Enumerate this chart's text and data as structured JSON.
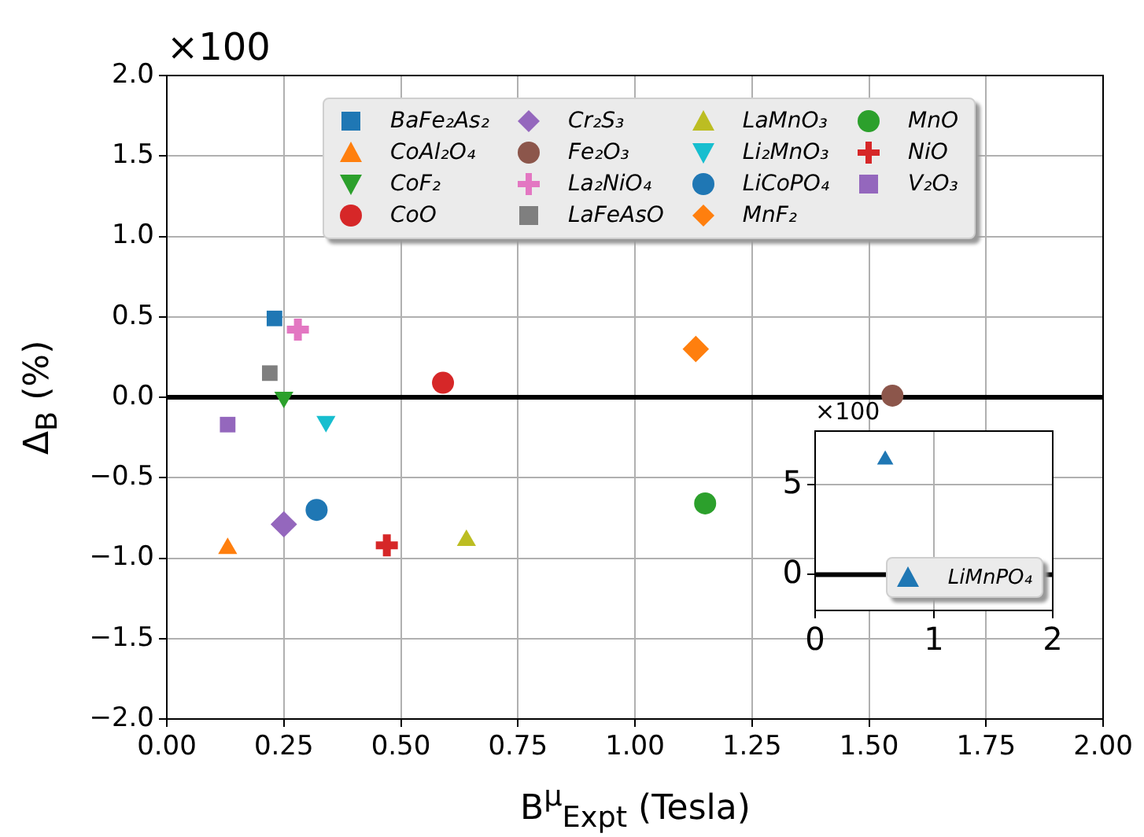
{
  "chart_data": [
    {
      "type": "scatter",
      "xlabel": "B$^{μ}$$_{Expt}$ (Tesla)",
      "ylabel": "Δ$_{B}$ (%)",
      "annotations": [
        "×100"
      ],
      "xlim": [
        0,
        2
      ],
      "xticks": [
        {
          "value": 0,
          "label": "0.00"
        },
        {
          "value": 0.25,
          "label": "0.25"
        },
        {
          "value": 0.5,
          "label": "0.50"
        },
        {
          "value": 0.75,
          "label": "0.75"
        },
        {
          "value": 1,
          "label": "1.00"
        },
        {
          "value": 1.25,
          "label": "1.25"
        },
        {
          "value": 1.5,
          "label": "1.50"
        },
        {
          "value": 1.75,
          "label": "1.75"
        },
        {
          "value": 2,
          "label": "2.00"
        }
      ],
      "ylim": [
        -2,
        2
      ],
      "yticks": [
        {
          "value": -2,
          "label": "−2.0"
        },
        {
          "value": -1.5,
          "label": "−1.5"
        },
        {
          "value": -1,
          "label": "−1.0"
        },
        {
          "value": -0.5,
          "label": "−0.5"
        },
        {
          "value": 0,
          "label": "0.0"
        },
        {
          "value": 0.5,
          "label": "0.5"
        },
        {
          "value": 1,
          "label": "1.0"
        },
        {
          "value": 1.5,
          "label": "1.5"
        },
        {
          "value": 2,
          "label": "2.0"
        }
      ],
      "grid": true,
      "legend": "top",
      "ref_lines": [
        {
          "axis": "y",
          "value": 0,
          "color": "#000000"
        }
      ],
      "series": [
        {
          "name": "BaFe₂As₂",
          "color": "#1f77b4",
          "marker": "square",
          "x": [
            0.23
          ],
          "values": [
            0.49
          ]
        },
        {
          "name": "CoAl₂O₄",
          "color": "#ff7f0e",
          "marker": "triangle",
          "x": [
            0.13
          ],
          "values": [
            -0.94
          ]
        },
        {
          "name": "CoF₂",
          "color": "#2ca02c",
          "marker": "triangle_down",
          "x": [
            0.25
          ],
          "values": [
            0.0
          ]
        },
        {
          "name": "CoO",
          "color": "#d62728",
          "marker": "circle",
          "x": [
            0.59
          ],
          "values": [
            0.09
          ]
        },
        {
          "name": "Cr₂S₃",
          "color": "#9467bd",
          "marker": "diamond",
          "x": [
            0.25
          ],
          "values": [
            -0.79
          ]
        },
        {
          "name": "Fe₂O₃",
          "color": "#8c564b",
          "x": [
            1.55
          ],
          "values": [
            0.01
          ]
        },
        {
          "name": "La₂NiO₄",
          "color": "#e377c2",
          "marker": "plus",
          "x": [
            0.28
          ],
          "values": [
            0.42
          ]
        },
        {
          "name": "LaFeAsO",
          "color": "#7f7f7f",
          "marker": "square",
          "x": [
            0.22
          ],
          "values": [
            0.15
          ]
        },
        {
          "name": "LaMnO₃",
          "color": "#bcbd22",
          "marker": "triangle",
          "x": [
            0.64
          ],
          "values": [
            -0.89
          ]
        },
        {
          "name": "Li₂MnO₃",
          "color": "#17becf",
          "marker": "triangle_down",
          "x": [
            0.34
          ],
          "values": [
            -0.15
          ]
        },
        {
          "name": "LiCoPO₄",
          "color": "#1f77b4",
          "marker": "circle",
          "x": [
            0.32
          ],
          "values": [
            -0.7
          ]
        },
        {
          "name": "MnF₂",
          "color": "#ff7f0e",
          "marker": "diamond",
          "x": [
            1.13
          ],
          "values": [
            0.3
          ]
        },
        {
          "name": "MnO",
          "color": "#2ca02c",
          "x": [
            1.15
          ],
          "values": [
            -0.66
          ]
        },
        {
          "name": "NiO",
          "color": "#d62728",
          "marker": "plus",
          "x": [
            0.47
          ],
          "values": [
            -0.92
          ]
        },
        {
          "name": "V₂O₃",
          "color": "#9467bd",
          "marker": "square",
          "x": [
            0.13
          ],
          "values": [
            -0.17
          ]
        }
      ]
    },
    {
      "type": "scatter",
      "annotations": [
        "×100"
      ],
      "xlim": [
        0,
        2
      ],
      "xticks": [
        0,
        1,
        2
      ],
      "ylim": [
        -2,
        8
      ],
      "yticks": [
        0,
        5
      ],
      "grid": true,
      "legend": "bottom right",
      "ref_lines": [
        {
          "axis": "y",
          "value": 0,
          "color": "#000000"
        }
      ],
      "series": [
        {
          "name": "LiMnPO₄",
          "color": "#1f77b4",
          "marker": "triangle",
          "x": [
            0.59
          ],
          "values": [
            6.4
          ]
        }
      ]
    }
  ]
}
